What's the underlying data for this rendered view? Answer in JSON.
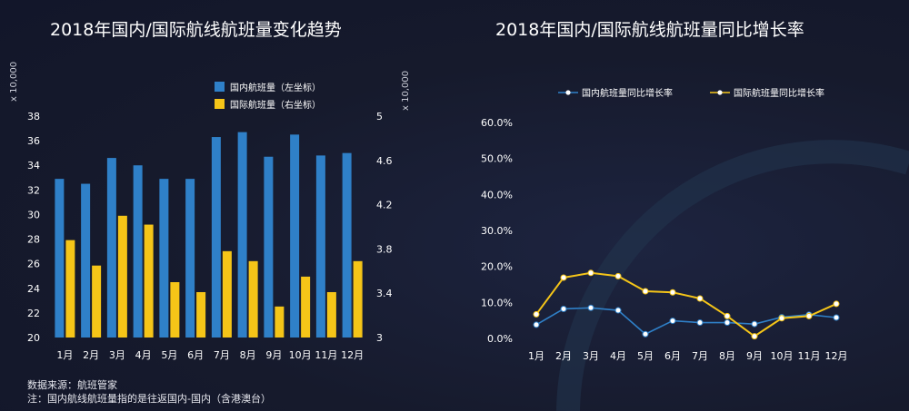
{
  "charts": {
    "left_title": "2018年国内/国际航线航班量变化趋势",
    "right_title": "2018年国内/国际航线航班量同比增长率"
  },
  "units": {
    "left_axis": "x 10,000",
    "right_axis": "x 10,000"
  },
  "notes": {
    "source": "数据来源：航班管家",
    "footnote": "注：国内航线航班量指的是往返国内-国内（含港澳台）"
  },
  "colors": {
    "domestic": "#2f80c8",
    "international": "#f5c518",
    "background": "#161a2c"
  },
  "chart_data": [
    {
      "type": "bar",
      "title": "2018年国内/国际航线航班量变化趋势",
      "categories": [
        "1月",
        "2月",
        "3月",
        "4月",
        "5月",
        "6月",
        "7月",
        "8月",
        "9月",
        "10月",
        "11月",
        "12月"
      ],
      "series": [
        {
          "name": "国内航班量（左坐标）",
          "axis": "left",
          "values": [
            32.9,
            32.5,
            34.6,
            34.0,
            32.9,
            32.9,
            36.3,
            36.7,
            34.7,
            36.5,
            34.8,
            35.0
          ]
        },
        {
          "name": "国际航班量（右坐标）",
          "axis": "right",
          "values": [
            3.88,
            3.65,
            4.1,
            4.02,
            3.5,
            3.41,
            3.78,
            3.69,
            3.28,
            3.55,
            3.41,
            3.69
          ]
        }
      ],
      "left_ylim": [
        20,
        38
      ],
      "left_ticks": [
        "20",
        "22",
        "24",
        "26",
        "28",
        "30",
        "32",
        "34",
        "36",
        "38"
      ],
      "right_ylim": [
        3,
        5
      ],
      "right_ticks": [
        "3",
        "3.4",
        "3.8",
        "4.2",
        "4.6",
        "5"
      ],
      "legend": "top-right",
      "grid": false
    },
    {
      "type": "line",
      "title": "2018年国内/国际航线航班量同比增长率",
      "categories": [
        "1月",
        "2月",
        "3月",
        "4月",
        "5月",
        "6月",
        "7月",
        "8月",
        "9月",
        "10月",
        "11月",
        "12月"
      ],
      "series": [
        {
          "name": "国内航班量同比增长率",
          "values": [
            3.8,
            8.2,
            8.5,
            7.8,
            1.2,
            4.9,
            4.4,
            4.4,
            4.0,
            5.9,
            6.6,
            5.8
          ]
        },
        {
          "name": "国际航班量同比增长率",
          "values": [
            6.7,
            16.9,
            18.2,
            17.3,
            13.1,
            12.8,
            11.1,
            6.2,
            0.6,
            5.6,
            6.2,
            9.6
          ]
        }
      ],
      "ylim": [
        0,
        60
      ],
      "y_ticks": [
        "0.0%",
        "10.0%",
        "20.0%",
        "30.0%",
        "40.0%",
        "50.0%",
        "60.0%"
      ],
      "legend": "top",
      "grid": false
    }
  ]
}
